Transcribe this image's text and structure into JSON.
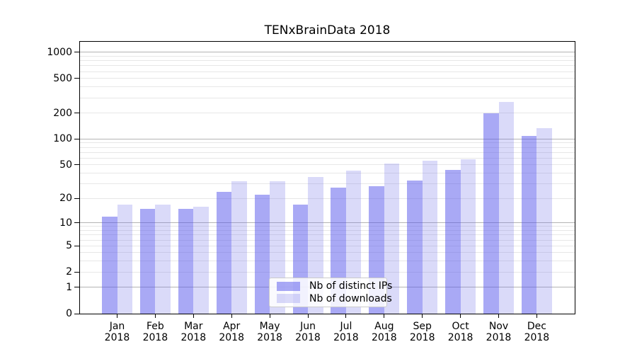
{
  "chart_data": {
    "type": "bar",
    "title": "TENxBrainData 2018",
    "categories": [
      "Jan 2018",
      "Feb 2018",
      "Mar 2018",
      "Apr 2018",
      "May 2018",
      "Jun 2018",
      "Jul 2018",
      "Aug 2018",
      "Sep 2018",
      "Oct 2018",
      "Nov 2018",
      "Dec 2018"
    ],
    "series": [
      {
        "name": "Nb of distinct IPs",
        "color": "rgba(83,83,235,0.5)",
        "color_over_white": "#a9a9f5",
        "values": [
          12,
          15,
          15,
          24,
          22,
          17,
          27,
          28,
          33,
          44,
          200,
          108
        ]
      },
      {
        "name": "Nb of downloads",
        "color": "rgba(107,107,231,0.25)",
        "color_over_white": "#dadaf9",
        "values": [
          17,
          17,
          16,
          32,
          32,
          36,
          43,
          52,
          56,
          58,
          270,
          135
        ]
      }
    ],
    "xlabel": "",
    "ylabel": "",
    "yscale": "log1p",
    "ylim": [
      0,
      1320
    ],
    "yticks": [
      0,
      1,
      2,
      5,
      10,
      20,
      50,
      100,
      200,
      500,
      1000
    ],
    "major_gridline_values": [
      1,
      10,
      100,
      1000
    ],
    "grid": "horizontal, major and minor",
    "legend_position": "lower center",
    "colors": {
      "major_grid": "#b4b4b4",
      "minor_grid": "#e7e7e7",
      "axis": "#000000",
      "background": "#ffffff"
    }
  }
}
